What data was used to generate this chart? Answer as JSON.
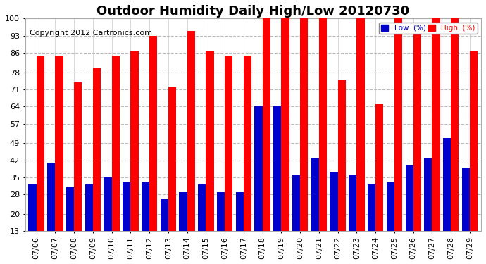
{
  "title": "Outdoor Humidity Daily High/Low 20120730",
  "copyright": "Copyright 2012 Cartronics.com",
  "dates": [
    "07/06",
    "07/07",
    "07/08",
    "07/09",
    "07/10",
    "07/11",
    "07/12",
    "07/13",
    "07/14",
    "07/15",
    "07/16",
    "07/17",
    "07/18",
    "07/19",
    "07/20",
    "07/21",
    "07/22",
    "07/23",
    "07/24",
    "07/25",
    "07/26",
    "07/27",
    "07/28",
    "07/29"
  ],
  "high": [
    85,
    85,
    74,
    80,
    85,
    87,
    93,
    72,
    95,
    87,
    85,
    85,
    100,
    100,
    100,
    100,
    75,
    100,
    65,
    100,
    96,
    100,
    100,
    87
  ],
  "low": [
    32,
    41,
    31,
    32,
    35,
    33,
    33,
    26,
    29,
    32,
    29,
    29,
    64,
    64,
    36,
    43,
    37,
    36,
    32,
    33,
    40,
    43,
    51,
    39
  ],
  "high_color": "#ff0000",
  "low_color": "#0000cc",
  "bg_color": "#ffffff",
  "grid_color": "#bbbbbb",
  "yticks": [
    13,
    20,
    28,
    35,
    42,
    49,
    57,
    64,
    71,
    78,
    86,
    93,
    100
  ],
  "ymin": 13,
  "ymax": 100,
  "bar_width": 0.42,
  "legend_low_label": "Low  (%)",
  "legend_high_label": "High  (%)",
  "title_fontsize": 13,
  "copyright_fontsize": 8,
  "tick_fontsize": 8
}
